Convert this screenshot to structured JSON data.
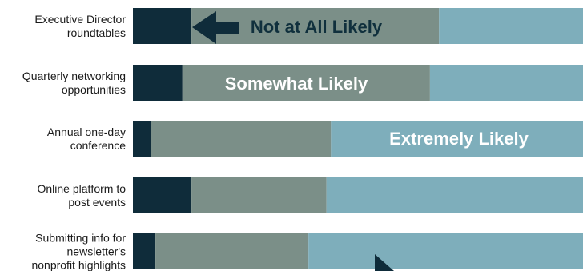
{
  "chart_data": {
    "type": "bar",
    "orientation": "horizontal",
    "stacked": true,
    "categories": [
      [
        "Executive Director",
        "roundtables"
      ],
      [
        "Quarterly networking",
        "opportunities"
      ],
      [
        "Annual one-day",
        "conference"
      ],
      [
        "Online platform to",
        "post events"
      ],
      [
        "Submitting info for",
        "newsletter's",
        "nonprofit highlights"
      ]
    ],
    "series": [
      {
        "name": "Not at All Likely",
        "values": [
          13,
          11,
          4,
          13,
          5
        ]
      },
      {
        "name": "Somewhat Likely",
        "values": [
          55,
          55,
          40,
          30,
          34
        ]
      },
      {
        "name": "Extremely Likely",
        "values": [
          32,
          34,
          56,
          57,
          61
        ]
      }
    ],
    "xlim": [
      0,
      100
    ],
    "grid": false,
    "colors": {
      "Not at All Likely": "#0f2c3a",
      "Somewhat Likely": "#7b8f88",
      "Extremely Likely": "#7eaebb",
      "arrow": "#0f2c3a",
      "label_dark": "#10303d",
      "label_light": "#ffffff"
    },
    "annotations": [
      {
        "text": "Not at All Likely",
        "category_index": 0,
        "style": "dark",
        "arrow": "left"
      },
      {
        "text": "Somewhat Likely",
        "category_index": 1,
        "style": "light"
      },
      {
        "text": "Extremely Likely",
        "category_index": 2,
        "style": "light"
      }
    ]
  }
}
